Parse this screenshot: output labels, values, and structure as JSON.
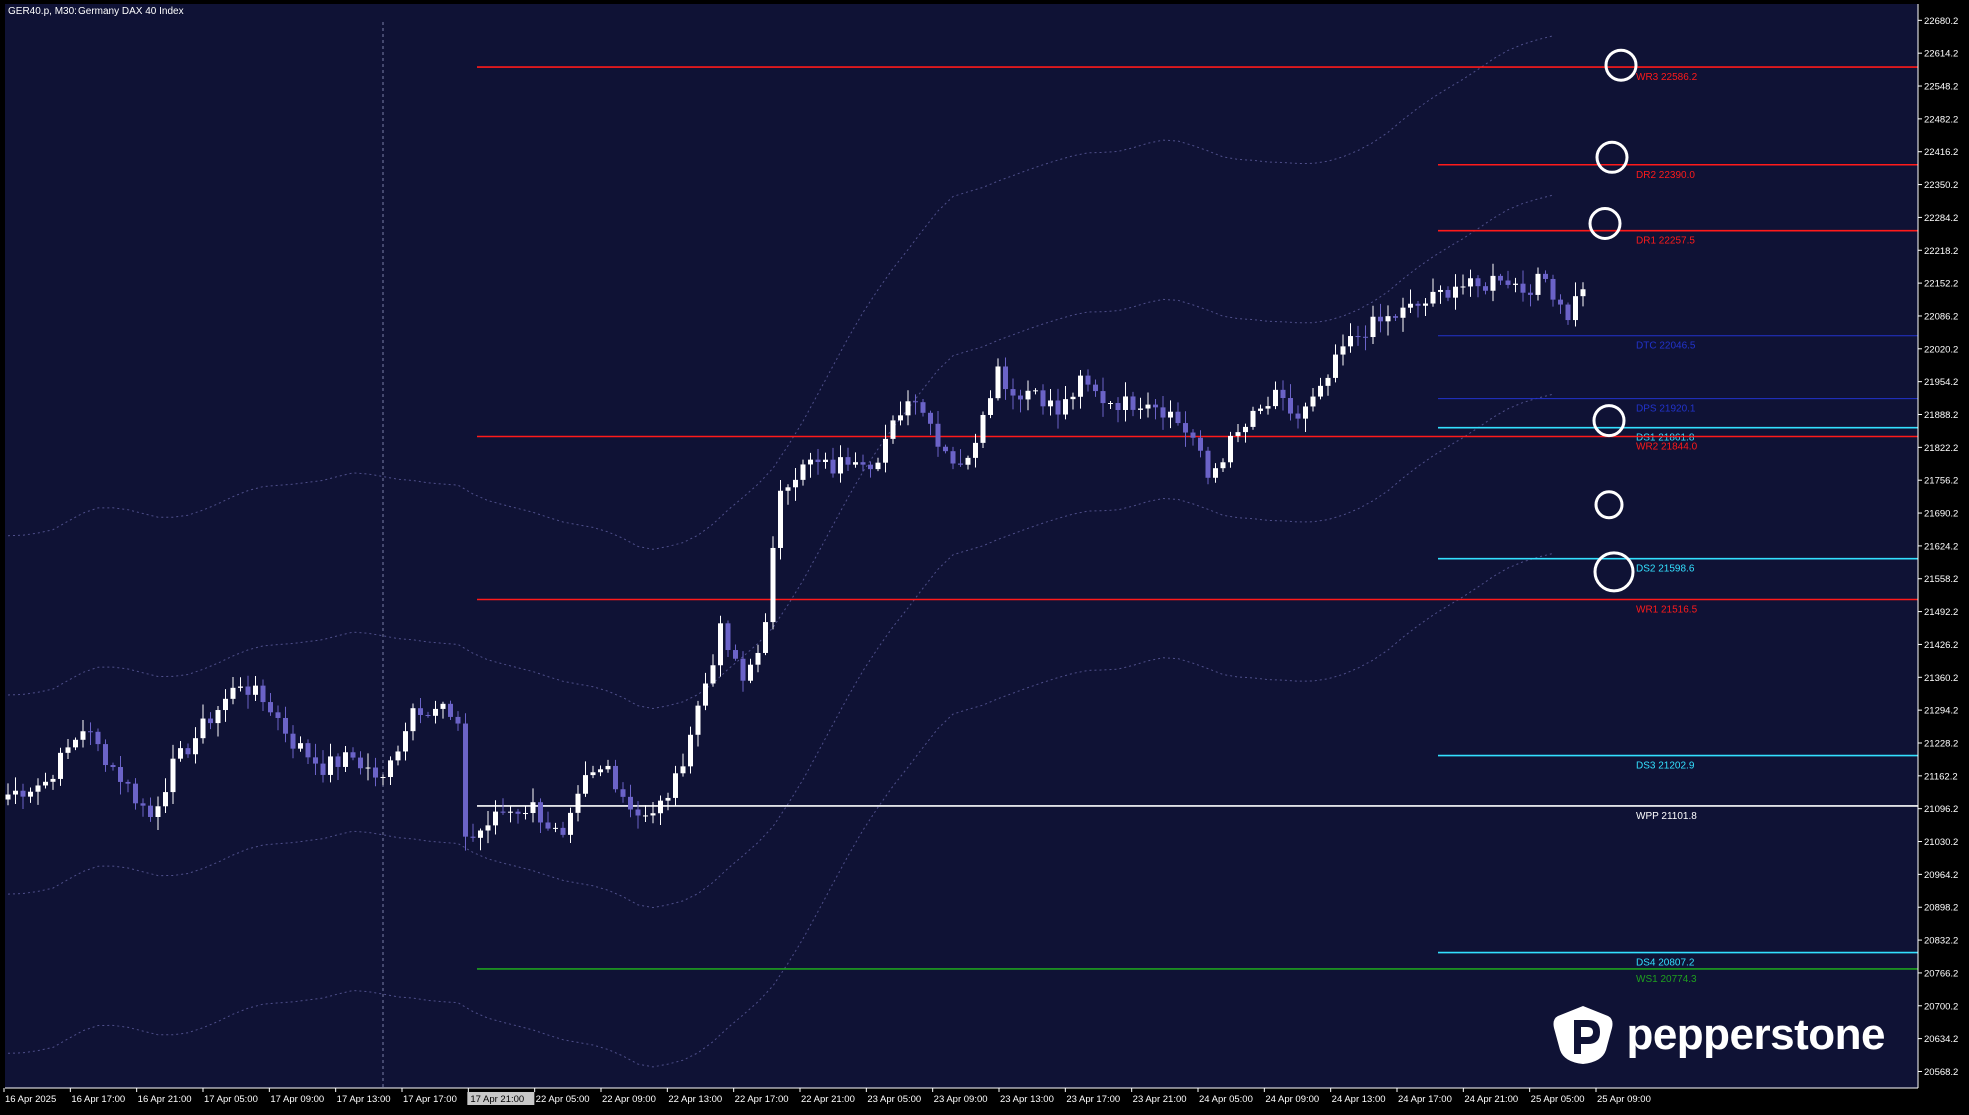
{
  "header": {
    "symbol": "GER40.p, M30:",
    "description": "Germany DAX 40 Index"
  },
  "colors": {
    "background": "#0f1235",
    "frame": "#000000",
    "bull_candle": "#ffffff",
    "bear_candle": "#6b63c8",
    "resistance": "#ff1a1a",
    "support": "#33e0ff",
    "pivot": "#ffffff",
    "weekly_support": "#1fa01f",
    "ma_band": "#5f5fa0",
    "axis_text": "#ffffff"
  },
  "chart_data": {
    "type": "candlestick",
    "y_axis": {
      "min": 20535.0,
      "max": 22713.0,
      "ticks": [
        "22680.2",
        "22614.2",
        "22548.2",
        "22482.2",
        "22416.2",
        "22350.2",
        "22284.2",
        "22218.2",
        "22152.2",
        "22086.2",
        "22020.2",
        "21954.2",
        "21888.2",
        "21822.2",
        "21756.2",
        "21690.2",
        "21624.2",
        "21558.2",
        "21492.2",
        "21426.2",
        "21360.2",
        "21294.2",
        "21228.2",
        "21162.2",
        "21096.2",
        "21030.2",
        "20964.2",
        "20898.2",
        "20832.2",
        "20766.2",
        "20700.2",
        "20634.2",
        "20568.2"
      ]
    },
    "x_axis": {
      "labels": [
        "16 Apr 2025",
        "16 Apr 17:00",
        "16 Apr 21:00",
        "17 Apr 05:00",
        "17 Apr 09:00",
        "17 Apr 13:00",
        "17 Apr 17:00",
        "17 Apr 21:00",
        "22 Apr 05:00",
        "22 Apr 09:00",
        "22 Apr 13:00",
        "22 Apr 17:00",
        "22 Apr 21:00",
        "23 Apr 05:00",
        "23 Apr 09:00",
        "23 Apr 13:00",
        "23 Apr 17:00",
        "23 Apr 21:00",
        "24 Apr 05:00",
        "24 Apr 09:00",
        "24 Apr 13:00",
        "24 Apr 17:00",
        "24 Apr 21:00",
        "25 Apr 05:00",
        "25 Apr 09:00"
      ],
      "highlighted_label": "17 Apr 21:00"
    },
    "levels": [
      {
        "label": "WR3 22586.2",
        "value": 22586.2,
        "kind": "resistance",
        "scope": "weekly"
      },
      {
        "label": "DR2 22390.0",
        "value": 22390.0,
        "kind": "resistance",
        "scope": "daily"
      },
      {
        "label": "DR1 22257.5",
        "value": 22257.5,
        "kind": "resistance",
        "scope": "daily"
      },
      {
        "label": "DTC 22046.5",
        "value": 22046.5,
        "kind": "daily-pivot",
        "scope": "daily"
      },
      {
        "label": "DPS 21920.1",
        "value": 21920.1,
        "kind": "daily-pivot",
        "scope": "daily"
      },
      {
        "label": "DS1 21861.8",
        "value": 21861.8,
        "kind": "support",
        "scope": "daily"
      },
      {
        "label": "WR2 21844.0",
        "value": 21844.0,
        "kind": "resistance",
        "scope": "weekly"
      },
      {
        "label": "DS2 21598.6",
        "value": 21598.6,
        "kind": "support",
        "scope": "daily"
      },
      {
        "label": "WR1 21516.5",
        "value": 21516.5,
        "kind": "resistance",
        "scope": "weekly"
      },
      {
        "label": "DS3 21202.9",
        "value": 21202.9,
        "kind": "support",
        "scope": "daily"
      },
      {
        "label": "WPP 21101.8",
        "value": 21101.8,
        "kind": "pivot",
        "scope": "weekly"
      },
      {
        "label": "DS4 20807.2",
        "value": 20807.2,
        "kind": "support",
        "scope": "daily"
      },
      {
        "label": "WS1 20774.3",
        "value": 20774.3,
        "kind": "weekly-support",
        "scope": "weekly"
      }
    ],
    "markers": [
      {
        "value": 22590,
        "size": "medium"
      },
      {
        "value": 22405,
        "size": "medium"
      },
      {
        "value": 22272,
        "size": "medium"
      },
      {
        "value": 21876,
        "size": "medium"
      },
      {
        "value": 21707,
        "size": "small"
      },
      {
        "value": 21572,
        "size": "large"
      }
    ],
    "anchors": [
      {
        "bar": 0,
        "price": 21125
      },
      {
        "bar": 5,
        "price": 21150
      },
      {
        "bar": 10,
        "price": 21260
      },
      {
        "bar": 14,
        "price": 21180
      },
      {
        "bar": 19,
        "price": 21080
      },
      {
        "bar": 22,
        "price": 21180
      },
      {
        "bar": 27,
        "price": 21280
      },
      {
        "bar": 31,
        "price": 21350
      },
      {
        "bar": 35,
        "price": 21300
      },
      {
        "bar": 38,
        "price": 21230
      },
      {
        "bar": 42,
        "price": 21180
      },
      {
        "bar": 46,
        "price": 21200
      },
      {
        "bar": 50,
        "price": 21150
      },
      {
        "bar": 54,
        "price": 21300
      },
      {
        "bar": 58,
        "price": 21300
      },
      {
        "bar": 60,
        "price": 21250
      },
      {
        "bar": 62,
        "price": 21040
      },
      {
        "bar": 66,
        "price": 21090
      },
      {
        "bar": 70,
        "price": 21100
      },
      {
        "bar": 74,
        "price": 21030
      },
      {
        "bar": 77,
        "price": 21150
      },
      {
        "bar": 80,
        "price": 21180
      },
      {
        "bar": 83,
        "price": 21100
      },
      {
        "bar": 86,
        "price": 21080
      },
      {
        "bar": 89,
        "price": 21150
      },
      {
        "bar": 92,
        "price": 21300
      },
      {
        "bar": 95,
        "price": 21450
      },
      {
        "bar": 98,
        "price": 21350
      },
      {
        "bar": 101,
        "price": 21460
      },
      {
        "bar": 103,
        "price": 21750
      },
      {
        "bar": 107,
        "price": 21790
      },
      {
        "bar": 110,
        "price": 21780
      },
      {
        "bar": 113,
        "price": 21810
      },
      {
        "bar": 116,
        "price": 21790
      },
      {
        "bar": 119,
        "price": 21900
      },
      {
        "bar": 121,
        "price": 21930
      },
      {
        "bar": 124,
        "price": 21840
      },
      {
        "bar": 126,
        "price": 21800
      },
      {
        "bar": 128,
        "price": 21790
      },
      {
        "bar": 130,
        "price": 21900
      },
      {
        "bar": 132,
        "price": 21980
      },
      {
        "bar": 134,
        "price": 21930
      },
      {
        "bar": 137,
        "price": 21940
      },
      {
        "bar": 140,
        "price": 21890
      },
      {
        "bar": 143,
        "price": 21950
      },
      {
        "bar": 146,
        "price": 21920
      },
      {
        "bar": 149,
        "price": 21910
      },
      {
        "bar": 152,
        "price": 21920
      },
      {
        "bar": 155,
        "price": 21890
      },
      {
        "bar": 158,
        "price": 21840
      },
      {
        "bar": 160,
        "price": 21760
      },
      {
        "bar": 163,
        "price": 21830
      },
      {
        "bar": 166,
        "price": 21880
      },
      {
        "bar": 169,
        "price": 21920
      },
      {
        "bar": 172,
        "price": 21880
      },
      {
        "bar": 175,
        "price": 21930
      },
      {
        "bar": 178,
        "price": 22020
      },
      {
        "bar": 181,
        "price": 22060
      },
      {
        "bar": 184,
        "price": 22080
      },
      {
        "bar": 187,
        "price": 22100
      },
      {
        "bar": 190,
        "price": 22120
      },
      {
        "bar": 193,
        "price": 22150
      },
      {
        "bar": 196,
        "price": 22140
      },
      {
        "bar": 199,
        "price": 22170
      },
      {
        "bar": 202,
        "price": 22140
      },
      {
        "bar": 205,
        "price": 22160
      },
      {
        "bar": 208,
        "price": 22090
      },
      {
        "bar": 210,
        "price": 22150
      }
    ]
  },
  "watermark": {
    "brand": "pepperstone"
  }
}
